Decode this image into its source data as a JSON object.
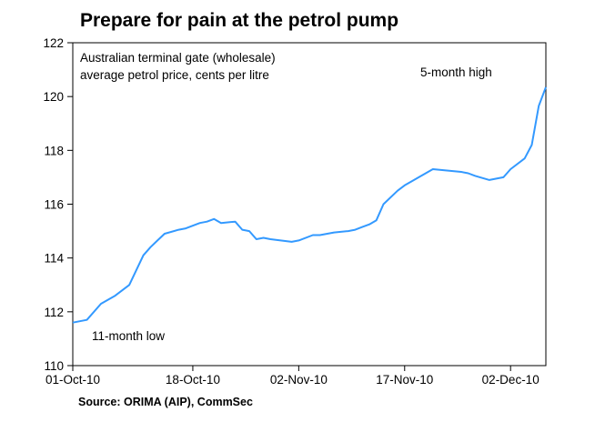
{
  "chart_data": {
    "type": "line",
    "title": "Prepare for pain at the petrol pump",
    "subtitle_lines": [
      "Australian terminal gate (wholesale)",
      "average petrol price, cents per litre"
    ],
    "source": "Source: ORIMA (AIP), CommSec",
    "ylim": [
      110,
      122
    ],
    "yticks": [
      110,
      112,
      114,
      116,
      118,
      120,
      122
    ],
    "xlim": [
      "2010-10-01",
      "2010-12-07"
    ],
    "xticks": [
      {
        "date": "2010-10-01",
        "label": "01-Oct-10"
      },
      {
        "date": "2010-10-18",
        "label": "18-Oct-10"
      },
      {
        "date": "2010-11-02",
        "label": "02-Nov-10"
      },
      {
        "date": "2010-11-17",
        "label": "17-Nov-10"
      },
      {
        "date": "2010-12-02",
        "label": "02-Dec-10"
      }
    ],
    "grid": false,
    "series": [
      {
        "color": "#3399ff",
        "x": [
          "2010-10-01",
          "2010-10-03",
          "2010-10-05",
          "2010-10-07",
          "2010-10-09",
          "2010-10-11",
          "2010-10-12",
          "2010-10-13",
          "2010-10-14",
          "2010-10-16",
          "2010-10-17",
          "2010-10-19",
          "2010-10-20",
          "2010-10-21",
          "2010-10-22",
          "2010-10-24",
          "2010-10-25",
          "2010-10-26",
          "2010-10-27",
          "2010-10-28",
          "2010-10-29",
          "2010-11-01",
          "2010-11-02",
          "2010-11-04",
          "2010-11-05",
          "2010-11-07",
          "2010-11-09",
          "2010-11-10",
          "2010-11-11",
          "2010-11-12",
          "2010-11-13",
          "2010-11-14",
          "2010-11-16",
          "2010-11-17",
          "2010-11-18",
          "2010-11-19",
          "2010-11-21",
          "2010-11-23",
          "2010-11-25",
          "2010-11-26",
          "2010-11-27",
          "2010-11-29",
          "2010-12-01",
          "2010-12-02",
          "2010-12-04",
          "2010-12-05",
          "2010-12-06"
        ],
        "y": [
          111.6,
          111.7,
          112.3,
          112.6,
          113.0,
          114.1,
          114.4,
          114.65,
          114.9,
          115.05,
          115.1,
          115.3,
          115.35,
          115.45,
          115.3,
          115.35,
          115.05,
          115.0,
          114.7,
          114.75,
          114.7,
          114.6,
          114.65,
          114.85,
          114.85,
          114.95,
          115.0,
          115.05,
          115.15,
          115.25,
          115.4,
          116.0,
          116.5,
          116.7,
          116.85,
          117.0,
          117.3,
          117.25,
          117.2,
          117.15,
          117.05,
          116.9,
          117.0,
          117.3,
          117.7,
          118.2,
          119.65
        ]
      }
    ],
    "last_point": {
      "x": "2010-12-07",
      "y": 120.35
    },
    "annotations": [
      {
        "text": "5-month high",
        "near": "top-right"
      },
      {
        "text": "11-month low",
        "near": "bottom-left"
      }
    ]
  }
}
